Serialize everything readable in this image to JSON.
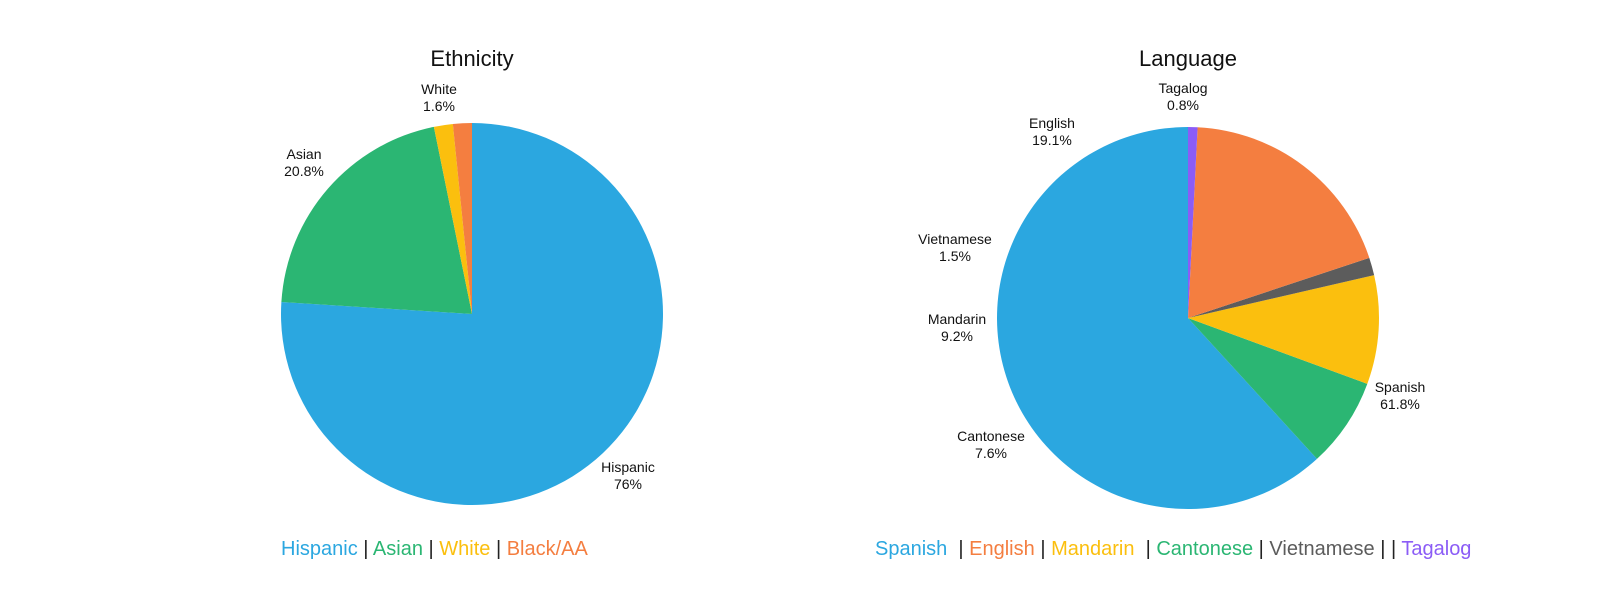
{
  "chart_data": [
    {
      "type": "pie",
      "title": "Ethnicity",
      "slices": [
        {
          "label": "Hispanic",
          "value": 76,
          "value_label": "76%",
          "color": "#2ba7e0"
        },
        {
          "label": "Asian",
          "value": 20.8,
          "value_label": "20.8%",
          "color": "#2bb673"
        },
        {
          "label": "White",
          "value": 1.6,
          "value_label": "1.6%",
          "color": "#fbbf0e"
        },
        {
          "label": "Black/AA",
          "value": 1.6,
          "value_label": "",
          "color": "#f47e40"
        }
      ],
      "legend": {
        "placement": "bottom",
        "items": [
          {
            "text": "Hispanic",
            "color": "#2ba7e0"
          },
          {
            "text": "Asian",
            "color": "#2bb673"
          },
          {
            "text": "White",
            "color": "#fbbf0e"
          },
          {
            "text": "Black/AA",
            "color": "#f47e40"
          }
        ],
        "separator": " | "
      }
    },
    {
      "type": "pie",
      "title": "Language",
      "slices": [
        {
          "label": "Spanish",
          "value": 61.8,
          "value_label": "61.8%",
          "color": "#2ba7e0"
        },
        {
          "label": "Cantonese",
          "value": 7.6,
          "value_label": "7.6%",
          "color": "#2bb673"
        },
        {
          "label": "Mandarin",
          "value": 9.2,
          "value_label": "9.2%",
          "color": "#fbbf0e"
        },
        {
          "label": "Vietnamese",
          "value": 1.5,
          "value_label": "1.5%",
          "color": "#5c5c5c"
        },
        {
          "label": "English",
          "value": 19.1,
          "value_label": "19.1%",
          "color": "#f47e40"
        },
        {
          "label": "Tagalog",
          "value": 0.8,
          "value_label": "0.8%",
          "color": "#8b5cf6"
        }
      ],
      "legend": {
        "placement": "bottom",
        "items": [
          {
            "text": "Spanish",
            "color": "#2ba7e0"
          },
          {
            "text": "English",
            "color": "#f47e40"
          },
          {
            "text": "Mandarin",
            "color": "#fbbf0e"
          },
          {
            "text": "Cantonese",
            "color": "#2bb673"
          },
          {
            "text": "Vietnamese",
            "color": "#5c5c5c"
          },
          {
            "text": "Tagalog",
            "color": "#8b5cf6"
          }
        ],
        "separators": [
          "  | ",
          " | ",
          "  | ",
          " | ",
          " | | "
        ]
      }
    }
  ]
}
